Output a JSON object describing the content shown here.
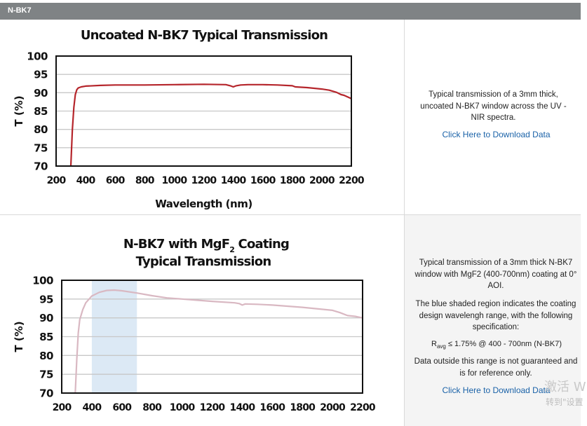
{
  "header": {
    "label": "N-BK7"
  },
  "panels": [
    {
      "description": "Typical transmission of a 3mm thick, uncoated N-BK7 window across the UV - NIR spectra.",
      "download": "Click Here to Download Data"
    },
    {
      "description_1": "Typical transmission of a 3mm thick N-BK7 window with MgF2 (400-700nm) coating at 0° AOI.",
      "description_2": "The blue shaded region indicates the coating design wavelengh range, with the following specification:",
      "spec_r": "R",
      "spec_sub": "avg",
      "spec_rest": " ≤ 1.75% @ 400 - 700nm (N-BK7)",
      "description_3": "Data outside this range is not guaranteed and is for reference only.",
      "download": "Click Here to Download Data"
    }
  ],
  "chart_data": [
    {
      "type": "line",
      "title": "Uncoated N-BK7 Typical Transmission",
      "xlabel": "Wavelength (nm)",
      "ylabel": "T (%)",
      "xlim": [
        200,
        2200
      ],
      "ylim": [
        70,
        100
      ],
      "xticks": [
        200,
        400,
        600,
        800,
        1000,
        1200,
        1400,
        1600,
        1800,
        2000,
        2200
      ],
      "yticks": [
        70,
        75,
        80,
        85,
        90,
        95,
        100
      ],
      "grid": true,
      "color": "#b5252b",
      "series": [
        {
          "x": [
            300,
            310,
            320,
            330,
            340,
            350,
            370,
            400,
            500,
            600,
            800,
            1000,
            1200,
            1350,
            1380,
            1400,
            1420,
            1450,
            1500,
            1600,
            1700,
            1800,
            1820,
            1900,
            2000,
            2050,
            2100,
            2130,
            2150,
            2200
          ],
          "y": [
            70,
            80,
            86,
            89.5,
            90.8,
            91.3,
            91.6,
            91.8,
            92.0,
            92.1,
            92.1,
            92.2,
            92.3,
            92.2,
            91.9,
            91.6,
            91.9,
            92.1,
            92.2,
            92.2,
            92.1,
            91.9,
            91.6,
            91.4,
            91.0,
            90.7,
            90.1,
            89.5,
            89.3,
            88.4
          ]
        }
      ]
    },
    {
      "type": "line",
      "title": "N-BK7 with MgF",
      "title_sub": "2",
      "title_rest": " Coating",
      "title_line2": "Typical Transmission",
      "xlabel": "Wavelength (nm)",
      "ylabel": "T (%)",
      "xlim": [
        200,
        2200
      ],
      "ylim": [
        70,
        100
      ],
      "xticks": [
        200,
        400,
        600,
        800,
        1000,
        1200,
        1400,
        1600,
        1800,
        2000,
        2200
      ],
      "yticks": [
        70,
        75,
        80,
        85,
        90,
        95,
        100
      ],
      "grid": true,
      "shaded_region": [
        400,
        700
      ],
      "shade_color": "#dce9f5",
      "color": "#d9b8c2",
      "series": [
        {
          "x": [
            290,
            300,
            310,
            320,
            340,
            360,
            400,
            450,
            500,
            550,
            600,
            700,
            800,
            900,
            1000,
            1200,
            1350,
            1380,
            1400,
            1420,
            1500,
            1600,
            1800,
            2000,
            2050,
            2100,
            2150,
            2200
          ],
          "y": [
            70,
            79,
            86,
            89.5,
            92.2,
            94,
            95.8,
            96.8,
            97.3,
            97.4,
            97.2,
            96.6,
            95.9,
            95.3,
            95.0,
            94.4,
            94.0,
            93.8,
            93.4,
            93.7,
            93.6,
            93.4,
            92.8,
            92.0,
            91.4,
            90.6,
            90.4,
            90.0
          ]
        }
      ]
    }
  ]
}
